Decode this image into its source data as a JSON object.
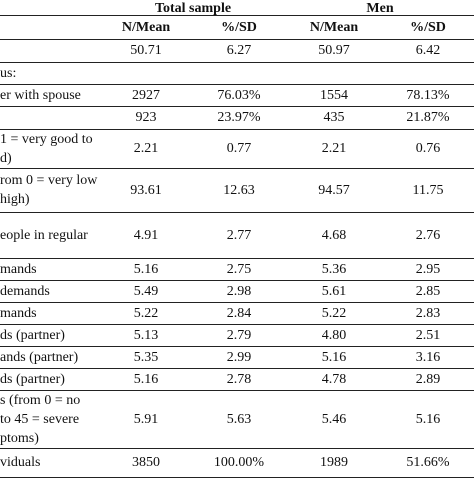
{
  "table": {
    "group_headers": [
      "Total sample",
      "Men"
    ],
    "column_headers": [
      "N/Mean",
      "%/SD",
      "N/Mean",
      "%/SD"
    ],
    "rows": [
      {
        "label": [],
        "cells": [
          "50.71",
          "6.27",
          "50.97",
          "6.42"
        ]
      },
      {
        "label": [
          "us:"
        ],
        "cells": []
      },
      {
        "label": [
          "er with spouse"
        ],
        "cells": [
          "2927",
          "76.03%",
          "1554",
          "78.13%"
        ]
      },
      {
        "label": [],
        "cells": [
          "923",
          "23.97%",
          "435",
          "21.87%"
        ]
      },
      {
        "label": [
          "1 = very good to",
          "d)"
        ],
        "cells": [
          "2.21",
          "0.77",
          "2.21",
          "0.76"
        ]
      },
      {
        "label": [
          "rom 0 = very low",
          "high)"
        ],
        "cells": [
          "93.61",
          "12.63",
          "94.57",
          "11.75"
        ]
      },
      {
        "label": [
          "eople in regular"
        ],
        "cells": [
          "4.91",
          "2.77",
          "4.68",
          "2.76"
        ]
      },
      {
        "label": [
          "mands"
        ],
        "cells": [
          "5.16",
          "2.75",
          "5.36",
          "2.95"
        ]
      },
      {
        "label": [
          "demands"
        ],
        "cells": [
          "5.49",
          "2.98",
          "5.61",
          "2.85"
        ]
      },
      {
        "label": [
          "mands"
        ],
        "cells": [
          "5.22",
          "2.84",
          "5.22",
          "2.83"
        ]
      },
      {
        "label": [
          "ds (partner)"
        ],
        "cells": [
          "5.13",
          "2.79",
          "4.80",
          "2.51"
        ]
      },
      {
        "label": [
          "ands (partner)"
        ],
        "cells": [
          "5.35",
          "2.99",
          "5.16",
          "3.16"
        ]
      },
      {
        "label": [
          "ds (partner)"
        ],
        "cells": [
          "5.16",
          "2.78",
          "4.78",
          "2.89"
        ]
      },
      {
        "label": [
          "s (from 0 = no",
          "to 45 = severe",
          "ptoms)"
        ],
        "cells": [
          "5.91",
          "5.63",
          "5.46",
          "5.16"
        ]
      },
      {
        "label": [
          "viduals"
        ],
        "cells": [
          "3850",
          "100.00%",
          "1989",
          "51.66%"
        ]
      }
    ]
  }
}
